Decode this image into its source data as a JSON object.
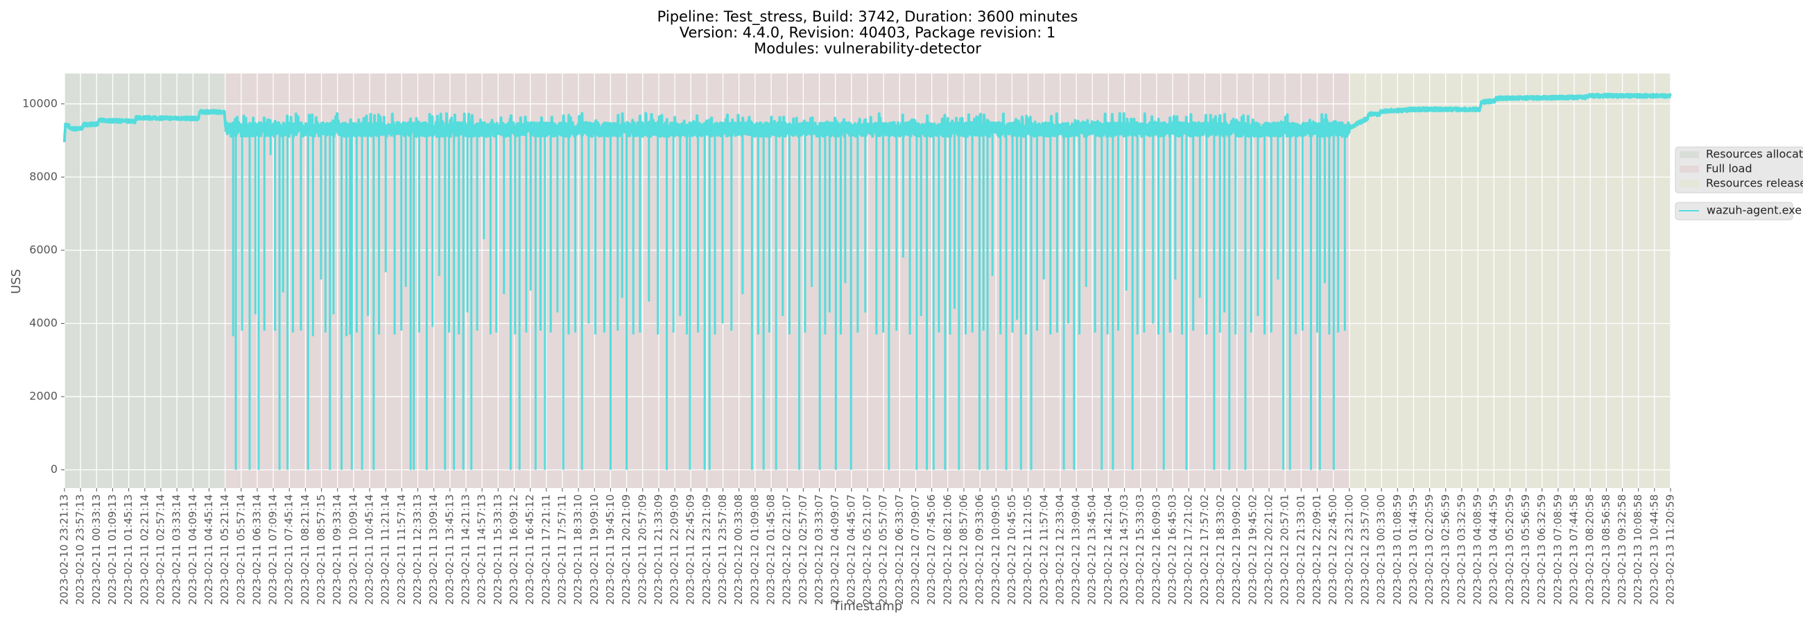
{
  "chart_data": {
    "type": "line",
    "title_lines": [
      "Pipeline: Test_stress, Build: 3742, Duration: 3600 minutes",
      "Version: 4.4.0, Revision: 40403, Package revision: 1",
      "Modules: vulnerability-detector"
    ],
    "xlabel": "Timestamp",
    "ylabel": "USS",
    "x_unit": "minutes since 2023-02-10 23:21:13",
    "xlim": [
      0,
      3600
    ],
    "ylim": [
      -500,
      10830
    ],
    "yticks": [
      0,
      2000,
      4000,
      6000,
      8000,
      10000
    ],
    "grid": true,
    "legend_placement": "right-outside",
    "xtick_minutes_step": 36,
    "xtick_labels": [
      "2023-02-10 23:21:13",
      "2023-02-10 23:57:13",
      "2023-02-11 00:33:13",
      "2023-02-11 01:09:13",
      "2023-02-11 01:45:13",
      "2023-02-11 02:21:14",
      "2023-02-11 02:57:14",
      "2023-02-11 03:33:14",
      "2023-02-11 04:09:14",
      "2023-02-11 04:45:14",
      "2023-02-11 05:21:14",
      "2023-02-11 05:57:14",
      "2023-02-11 06:33:14",
      "2023-02-11 07:09:14",
      "2023-02-11 07:45:14",
      "2023-02-11 08:21:14",
      "2023-02-11 08:57:15",
      "2023-02-11 09:33:14",
      "2023-02-11 10:09:14",
      "2023-02-11 10:45:14",
      "2023-02-11 11:21:14",
      "2023-02-11 11:57:14",
      "2023-02-11 12:33:13",
      "2023-02-11 13:09:14",
      "2023-02-11 13:45:13",
      "2023-02-11 14:21:13",
      "2023-02-11 14:57:13",
      "2023-02-11 15:33:13",
      "2023-02-11 16:09:12",
      "2023-02-11 16:45:12",
      "2023-02-11 17:21:11",
      "2023-02-11 17:57:11",
      "2023-02-11 18:33:10",
      "2023-02-11 19:09:10",
      "2023-02-11 19:45:10",
      "2023-02-11 20:21:09",
      "2023-02-11 20:57:09",
      "2023-02-11 21:33:09",
      "2023-02-11 22:09:09",
      "2023-02-11 22:45:09",
      "2023-02-11 23:21:09",
      "2023-02-11 23:57:08",
      "2023-02-12 00:33:08",
      "2023-02-12 01:09:08",
      "2023-02-12 01:45:08",
      "2023-02-12 02:21:07",
      "2023-02-12 02:57:07",
      "2023-02-12 03:33:07",
      "2023-02-12 04:09:07",
      "2023-02-12 04:45:07",
      "2023-02-12 05:21:07",
      "2023-02-12 05:57:07",
      "2023-02-12 06:33:07",
      "2023-02-12 07:09:07",
      "2023-02-12 07:45:06",
      "2023-02-12 08:21:06",
      "2023-02-12 08:57:06",
      "2023-02-12 09:33:06",
      "2023-02-12 10:09:05",
      "2023-02-12 10:45:05",
      "2023-02-12 11:21:05",
      "2023-02-12 11:57:04",
      "2023-02-12 12:33:04",
      "2023-02-12 13:09:04",
      "2023-02-12 13:45:04",
      "2023-02-12 14:21:04",
      "2023-02-12 14:57:03",
      "2023-02-12 15:33:03",
      "2023-02-12 16:09:03",
      "2023-02-12 16:45:03",
      "2023-02-12 17:21:02",
      "2023-02-12 17:57:02",
      "2023-02-12 18:33:02",
      "2023-02-12 19:09:02",
      "2023-02-12 19:45:02",
      "2023-02-12 20:21:02",
      "2023-02-12 20:57:01",
      "2023-02-12 21:33:01",
      "2023-02-12 22:09:01",
      "2023-02-12 22:45:00",
      "2023-02-12 23:21:00",
      "2023-02-12 23:57:00",
      "2023-02-13 00:33:00",
      "2023-02-13 01:08:59",
      "2023-02-13 01:44:59",
      "2023-02-13 02:20:59",
      "2023-02-13 02:56:59",
      "2023-02-13 03:32:59",
      "2023-02-13 04:08:59",
      "2023-02-13 04:44:59",
      "2023-02-13 05:20:59",
      "2023-02-13 05:56:59",
      "2023-02-13 06:32:59",
      "2023-02-13 07:08:59",
      "2023-02-13 07:44:58",
      "2023-02-13 08:20:58",
      "2023-02-13 08:56:58",
      "2023-02-13 09:32:58",
      "2023-02-13 10:08:58",
      "2023-02-13 10:44:58",
      "2023-02-13 11:20:59"
    ],
    "phases": [
      {
        "name": "Resources allocation",
        "start": 0,
        "end": 360,
        "color": "#d9dfd8"
      },
      {
        "name": "Full load",
        "start": 360,
        "end": 2880,
        "color": "#e4d8d8"
      },
      {
        "name": "Resources release",
        "start": 2880,
        "end": 3600,
        "color": "#e5e6d8"
      }
    ],
    "series": [
      {
        "name": "wazuh-agent.exe",
        "color": "#55dcdc",
        "baseline": [
          [
            0,
            9000
          ],
          [
            2,
            9430
          ],
          [
            10,
            9400
          ],
          [
            12,
            9320
          ],
          [
            40,
            9320
          ],
          [
            42,
            9430
          ],
          [
            75,
            9450
          ],
          [
            77,
            9550
          ],
          [
            158,
            9520
          ],
          [
            160,
            9620
          ],
          [
            300,
            9600
          ],
          [
            303,
            9780
          ],
          [
            358,
            9780
          ],
          [
            362,
            9300
          ],
          [
            2878,
            9300
          ],
          [
            2881,
            9350
          ],
          [
            2920,
            9600
          ],
          [
            2925,
            9720
          ],
          [
            2948,
            9720
          ],
          [
            2950,
            9800
          ],
          [
            3010,
            9830
          ],
          [
            3015,
            9850
          ],
          [
            3172,
            9850
          ],
          [
            3176,
            10050
          ],
          [
            3205,
            10080
          ],
          [
            3210,
            10150
          ],
          [
            3410,
            10180
          ],
          [
            3415,
            10220
          ],
          [
            3600,
            10220
          ]
        ],
        "drops_to_zero": [
          384,
          415,
          435,
          482,
          500,
          546,
          595,
          621,
          644,
          667,
          693,
          776,
          783,
          812,
          853,
          873,
          894,
          912,
          1000,
          1020,
          1056,
          1077,
          1118,
          1160,
          1224,
          1260,
          1350,
          1402,
          1435,
          1446,
          1541,
          1567,
          1595,
          1647,
          1693,
          1729,
          1763,
          1848,
          1910,
          1933,
          1948,
          1974,
          2005,
          2051,
          2069,
          2111,
          2144,
          2167,
          2240,
          2263,
          2325,
          2350,
          2394,
          2464,
          2515,
          2577,
          2611,
          2647,
          2732,
          2747,
          2794,
          2814,
          2845
        ],
        "partial_drops": [
          [
            378,
            3650
          ],
          [
            398,
            3800
          ],
          [
            428,
            4250
          ],
          [
            448,
            3800
          ],
          [
            462,
            8600
          ],
          [
            472,
            3800
          ],
          [
            490,
            4850
          ],
          [
            512,
            3750
          ],
          [
            530,
            3800
          ],
          [
            557,
            3650
          ],
          [
            575,
            5200
          ],
          [
            585,
            3750
          ],
          [
            603,
            4250
          ],
          [
            632,
            3650
          ],
          [
            640,
            3700
          ],
          [
            655,
            3750
          ],
          [
            680,
            4200
          ],
          [
            705,
            3700
          ],
          [
            720,
            5400
          ],
          [
            740,
            3700
          ],
          [
            755,
            3800
          ],
          [
            765,
            5000
          ],
          [
            795,
            3750
          ],
          [
            825,
            3900
          ],
          [
            840,
            5300
          ],
          [
            862,
            3750
          ],
          [
            884,
            3700
          ],
          [
            903,
            4300
          ],
          [
            925,
            3800
          ],
          [
            940,
            6300
          ],
          [
            955,
            3700
          ],
          [
            968,
            3750
          ],
          [
            985,
            4800
          ],
          [
            1010,
            3700
          ],
          [
            1035,
            3750
          ],
          [
            1045,
            4900
          ],
          [
            1067,
            3800
          ],
          [
            1090,
            3750
          ],
          [
            1105,
            4300
          ],
          [
            1130,
            3700
          ],
          [
            1145,
            3750
          ],
          [
            1175,
            4000
          ],
          [
            1190,
            3700
          ],
          [
            1210,
            3750
          ],
          [
            1240,
            3800
          ],
          [
            1250,
            4700
          ],
          [
            1275,
            3700
          ],
          [
            1290,
            3750
          ],
          [
            1310,
            4600
          ],
          [
            1330,
            3700
          ],
          [
            1365,
            3750
          ],
          [
            1380,
            4200
          ],
          [
            1395,
            3700
          ],
          [
            1420,
            3750
          ],
          [
            1458,
            3700
          ],
          [
            1475,
            4000
          ],
          [
            1495,
            3800
          ],
          [
            1520,
            4800
          ],
          [
            1555,
            3700
          ],
          [
            1580,
            3750
          ],
          [
            1610,
            4200
          ],
          [
            1625,
            3700
          ],
          [
            1660,
            3750
          ],
          [
            1675,
            5000
          ],
          [
            1705,
            3700
          ],
          [
            1715,
            4300
          ],
          [
            1740,
            3700
          ],
          [
            1750,
            5100
          ],
          [
            1778,
            3750
          ],
          [
            1795,
            4300
          ],
          [
            1820,
            3700
          ],
          [
            1835,
            3750
          ],
          [
            1865,
            3800
          ],
          [
            1880,
            5800
          ],
          [
            1895,
            3700
          ],
          [
            1920,
            4200
          ],
          [
            1960,
            3750
          ],
          [
            1985,
            3700
          ],
          [
            1995,
            4400
          ],
          [
            2020,
            3700
          ],
          [
            2035,
            3750
          ],
          [
            2060,
            3800
          ],
          [
            2080,
            5300
          ],
          [
            2098,
            3700
          ],
          [
            2125,
            3750
          ],
          [
            2135,
            4100
          ],
          [
            2155,
            3700
          ],
          [
            2180,
            3800
          ],
          [
            2195,
            5200
          ],
          [
            2210,
            3700
          ],
          [
            2225,
            3750
          ],
          [
            2250,
            4000
          ],
          [
            2275,
            3700
          ],
          [
            2290,
            5000
          ],
          [
            2310,
            3750
          ],
          [
            2338,
            3700
          ],
          [
            2362,
            3800
          ],
          [
            2380,
            4900
          ],
          [
            2405,
            3700
          ],
          [
            2420,
            3750
          ],
          [
            2440,
            4000
          ],
          [
            2452,
            3700
          ],
          [
            2478,
            3750
          ],
          [
            2490,
            5200
          ],
          [
            2505,
            3700
          ],
          [
            2530,
            3800
          ],
          [
            2545,
            4700
          ],
          [
            2560,
            3700
          ],
          [
            2590,
            3750
          ],
          [
            2600,
            4300
          ],
          [
            2625,
            3700
          ],
          [
            2660,
            3750
          ],
          [
            2675,
            4200
          ],
          [
            2690,
            3700
          ],
          [
            2705,
            3750
          ],
          [
            2720,
            5200
          ],
          [
            2760,
            3700
          ],
          [
            2775,
            3800
          ],
          [
            2808,
            3750
          ],
          [
            2825,
            5100
          ],
          [
            2835,
            3700
          ],
          [
            2855,
            3750
          ],
          [
            2870,
            3800
          ]
        ]
      }
    ],
    "legend": {
      "phases": [
        "Resources allocation",
        "Full load",
        "Resources release"
      ],
      "series": [
        "wazuh-agent.exe"
      ]
    }
  }
}
